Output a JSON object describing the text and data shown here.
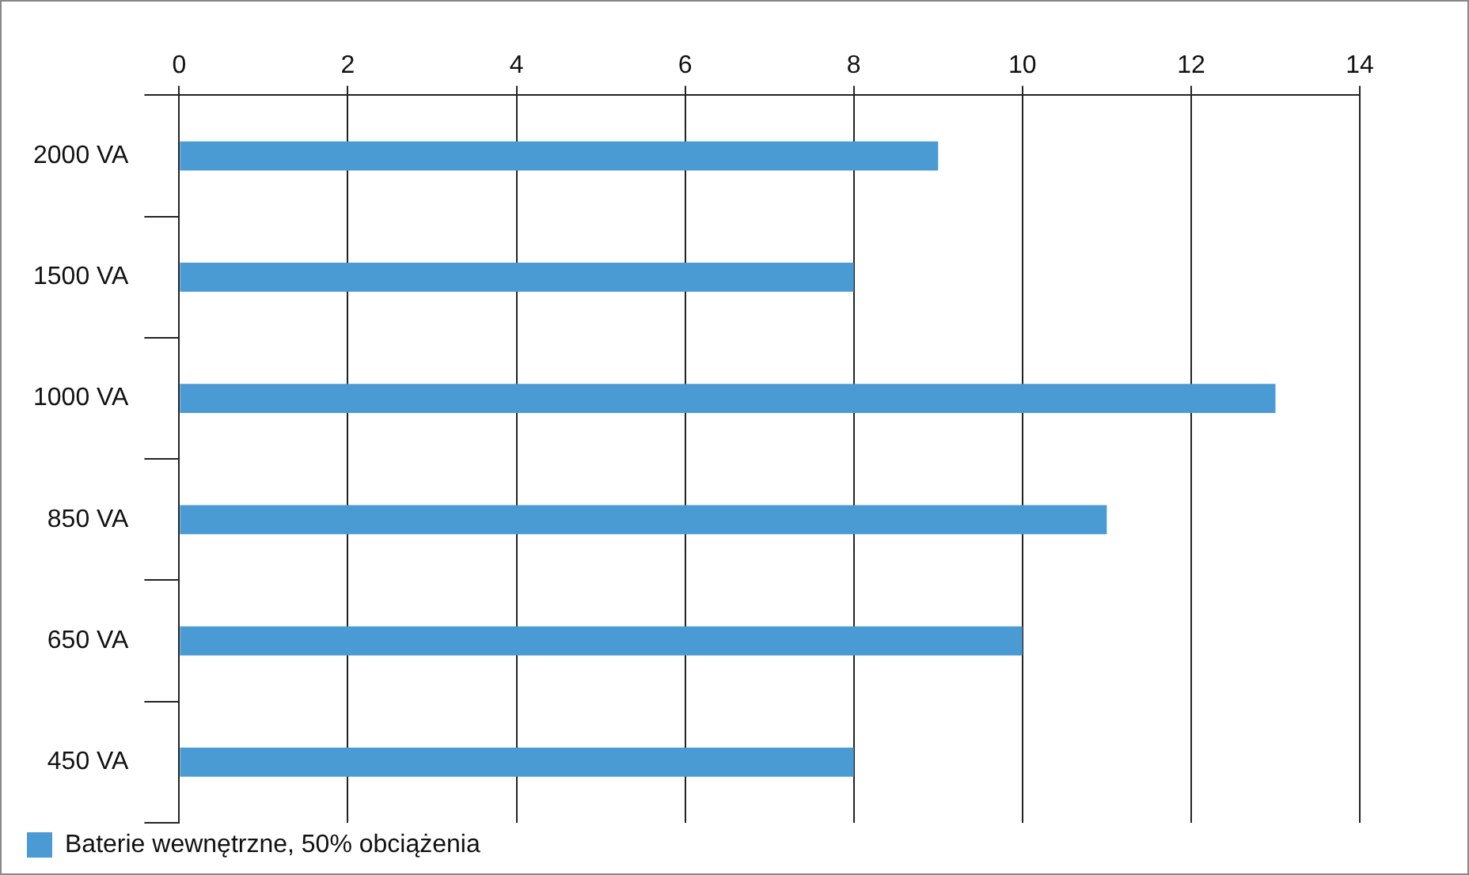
{
  "chart_data": {
    "type": "bar",
    "orientation": "horizontal",
    "categories": [
      "2000 VA",
      "1500 VA",
      "1000 VA",
      "850 VA",
      "650 VA",
      "450 VA"
    ],
    "series": [
      {
        "name": "Baterie wewnętrzne, 50% obciążenia",
        "color": "#4a9ad4",
        "values": [
          9,
          8,
          13,
          11,
          10,
          8
        ]
      }
    ],
    "xlim": [
      0,
      14
    ],
    "xticks": [
      0,
      2,
      4,
      6,
      8,
      10,
      12,
      14
    ],
    "grid": "x",
    "legend": "bottom left"
  }
}
